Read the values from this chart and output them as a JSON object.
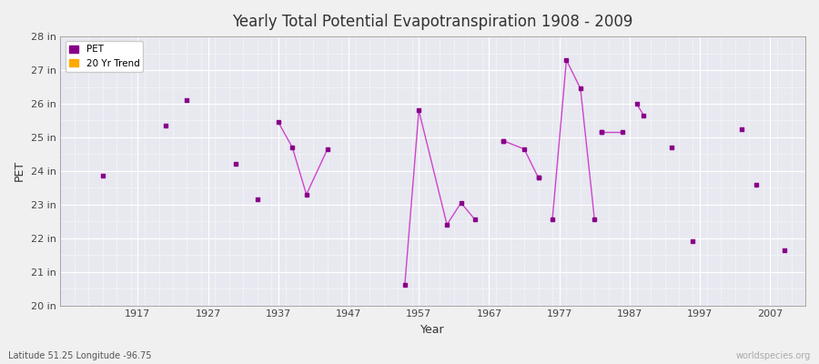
{
  "title": "Yearly Total Potential Evapotranspiration 1908 - 2009",
  "xlabel": "Year",
  "ylabel": "PET",
  "lat_lon_label": "Latitude 51.25 Longitude -96.75",
  "source_label": "worldspecies.org",
  "background_color": "#f0f0f0",
  "plot_bg_color": "#e8e8f0",
  "line_color": "#cc44cc",
  "marker_color": "#880088",
  "trend_color": "#ffaa00",
  "ylim": [
    20,
    28
  ],
  "ytick_labels": [
    "20 in",
    "21 in",
    "22 in",
    "23 in",
    "24 in",
    "25 in",
    "26 in",
    "27 in",
    "28 in"
  ],
  "ytick_values": [
    20,
    21,
    22,
    23,
    24,
    25,
    26,
    27,
    28
  ],
  "xtick_values": [
    1917,
    1927,
    1937,
    1947,
    1957,
    1967,
    1977,
    1987,
    1997,
    2007
  ],
  "xlim": [
    1906,
    2012
  ],
  "pet_data": [
    [
      1912,
      23.85
    ],
    [
      1921,
      25.35
    ],
    [
      1924,
      26.1
    ],
    [
      1931,
      24.2
    ],
    [
      1934,
      23.15
    ],
    [
      1955,
      20.6
    ],
    [
      1969,
      24.9
    ],
    [
      1974,
      23.8
    ],
    [
      1983,
      25.15
    ],
    [
      1993,
      24.7
    ],
    [
      1996,
      21.9
    ],
    [
      2003,
      25.25
    ],
    [
      2005,
      23.6
    ],
    [
      2009,
      21.65
    ]
  ],
  "pet_line_segments": [
    [
      [
        1937,
        25.45
      ],
      [
        1939,
        24.7
      ],
      [
        1941,
        23.3
      ],
      [
        1944,
        24.65
      ]
    ],
    [
      [
        1955,
        20.6
      ],
      [
        1957,
        25.8
      ],
      [
        1961,
        22.4
      ],
      [
        1963,
        23.05
      ],
      [
        1965,
        22.55
      ]
    ],
    [
      [
        1969,
        24.9
      ],
      [
        1972,
        24.65
      ],
      [
        1974,
        23.8
      ]
    ],
    [
      [
        1976,
        22.55
      ],
      [
        1978,
        27.3
      ],
      [
        1980,
        26.45
      ],
      [
        1982,
        22.55
      ]
    ],
    [
      [
        1983,
        25.15
      ],
      [
        1986,
        25.15
      ]
    ],
    [
      [
        1988,
        26.0
      ],
      [
        1989,
        25.65
      ]
    ]
  ],
  "isolated_points": [
    [
      1912,
      23.85
    ],
    [
      1921,
      25.35
    ],
    [
      1924,
      26.1
    ],
    [
      1931,
      24.2
    ],
    [
      1934,
      23.15
    ],
    [
      1969,
      24.9
    ],
    [
      1974,
      23.8
    ],
    [
      1983,
      25.15
    ],
    [
      1993,
      24.7
    ],
    [
      1996,
      21.9
    ],
    [
      2003,
      25.25
    ],
    [
      2005,
      23.6
    ],
    [
      2009,
      21.65
    ]
  ]
}
